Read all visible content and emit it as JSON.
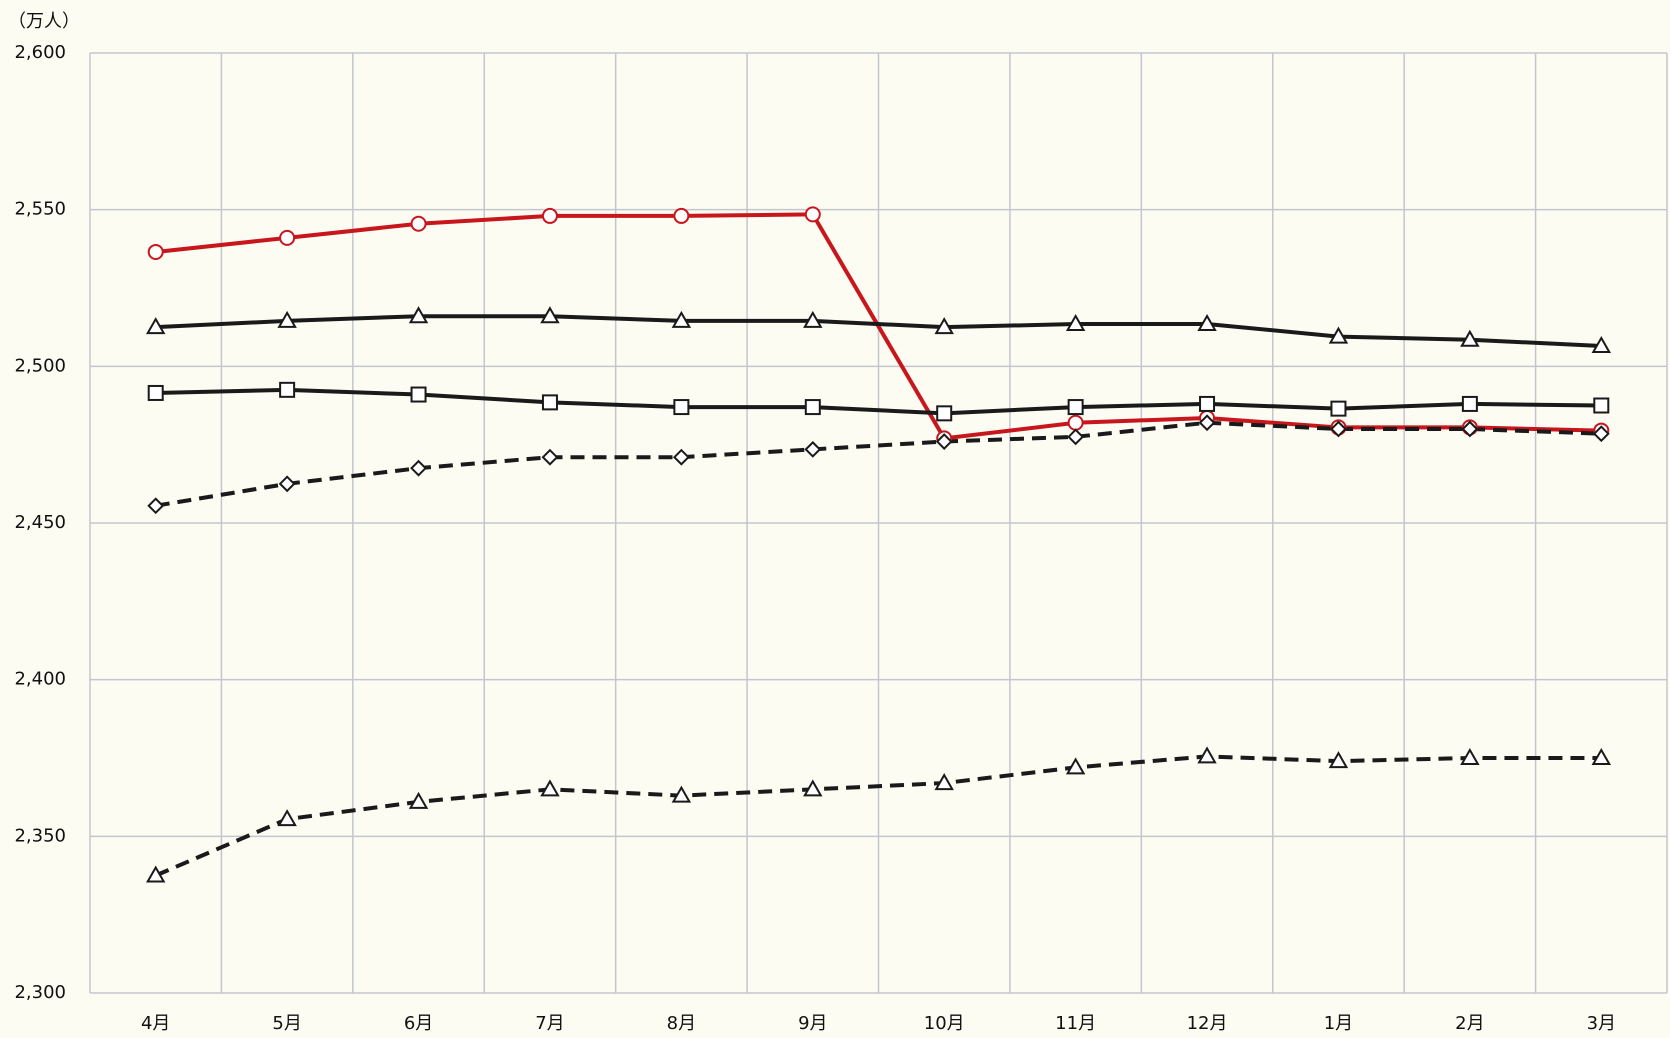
{
  "chart_data": {
    "type": "line",
    "y_unit_label": "（万人）",
    "categories": [
      "4月",
      "5月",
      "6月",
      "7月",
      "8月",
      "9月",
      "10月",
      "11月",
      "12月",
      "1月",
      "2月",
      "3月"
    ],
    "series": [
      {
        "color": "#c8161d",
        "marker": "circle",
        "dash": false,
        "values": [
          2536.5,
          2541,
          2545.5,
          2548,
          2548,
          2548.5,
          2477,
          2482,
          2483.5,
          2480.5,
          2480.5,
          2479.5
        ]
      },
      {
        "color": "#1a1a1a",
        "marker": "triangle",
        "dash": false,
        "values": [
          2512.5,
          2514.5,
          2516,
          2516,
          2514.5,
          2514.5,
          2512.5,
          2513.5,
          2513.5,
          2509.5,
          2508.5,
          2506.5
        ]
      },
      {
        "color": "#1a1a1a",
        "marker": "square",
        "dash": false,
        "values": [
          2491.5,
          2492.5,
          2491,
          2488.5,
          2487,
          2487,
          2485,
          2487,
          2488,
          2486.5,
          2488,
          2487.5
        ]
      },
      {
        "color": "#1a1a1a",
        "marker": "diamond",
        "dash": true,
        "values": [
          2455.5,
          2462.5,
          2467.5,
          2471,
          2471,
          2473.5,
          2476,
          2477.5,
          2482,
          2480,
          2480,
          2478.5
        ]
      },
      {
        "color": "#1a1a1a",
        "marker": "triangle",
        "dash": true,
        "values": [
          2337.5,
          2355.5,
          2361,
          2365,
          2363,
          2365,
          2367,
          2372,
          2375.5,
          2374,
          2375,
          2375
        ]
      }
    ],
    "ylim": [
      2300,
      2600
    ],
    "yticks": [
      {
        "value": 2300,
        "label": "2,300"
      },
      {
        "value": 2350,
        "label": "2,350"
      },
      {
        "value": 2400,
        "label": "2,400"
      },
      {
        "value": 2450,
        "label": "2,450"
      },
      {
        "value": 2500,
        "label": "2,500"
      },
      {
        "value": 2550,
        "label": "2,550"
      },
      {
        "value": 2600,
        "label": "2,600"
      }
    ],
    "grid": true
  }
}
